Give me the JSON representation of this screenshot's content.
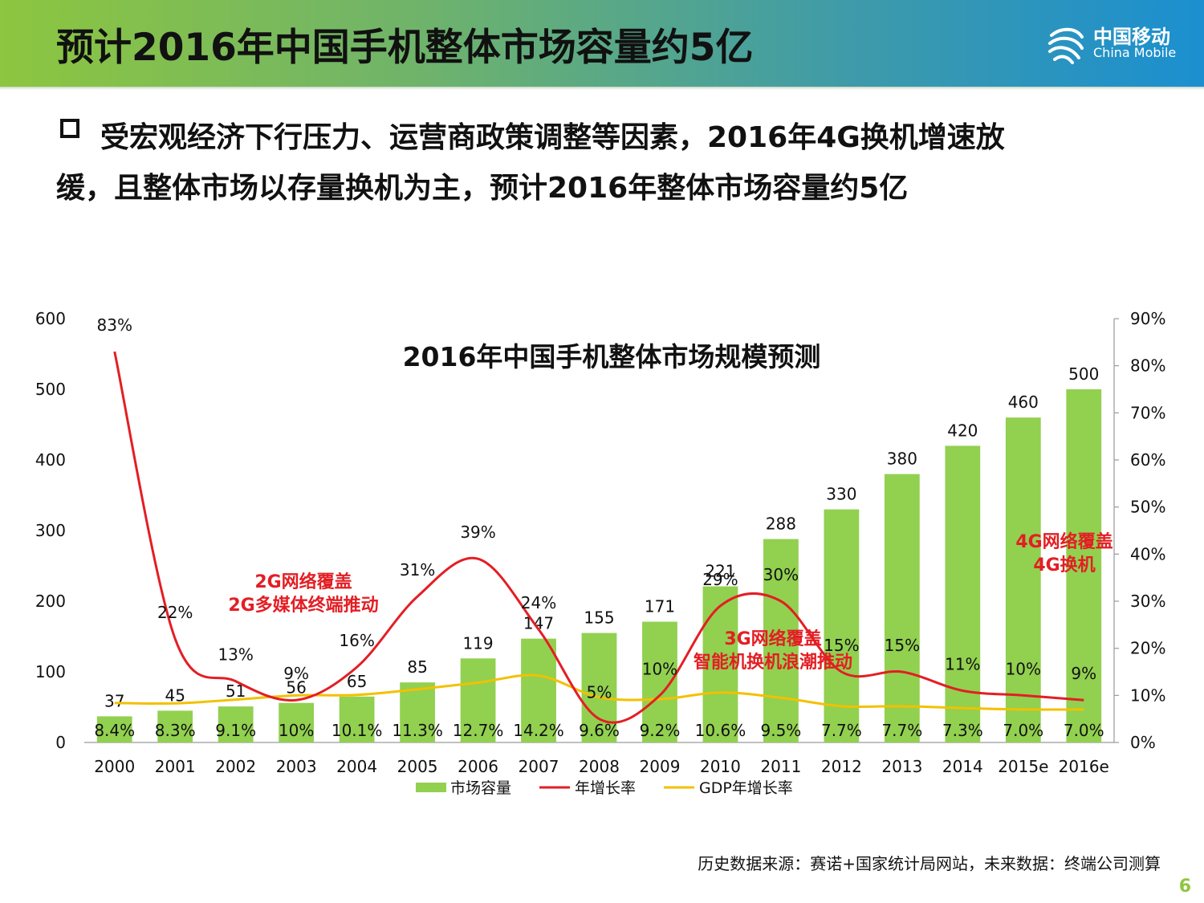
{
  "header": {
    "title": "预计2016年中国手机整体市场容量约5亿",
    "logo_cn": "中国移动",
    "logo_en": "China Mobile",
    "logo_icon": "china-mobile-logo-icon"
  },
  "bullet": {
    "line1": "受宏观经济下行压力、运营商政策调整等因素，2016年4G换机增速放",
    "line2": "缓，且整体市场以存量换机为主，预计2016年整体市场容量约5亿"
  },
  "chart_data": {
    "type": "bar",
    "title": "2016年中国手机整体市场规模预测",
    "categories": [
      "2000",
      "2001",
      "2002",
      "2003",
      "2004",
      "2005",
      "2006",
      "2007",
      "2008",
      "2009",
      "2010",
      "2011",
      "2012",
      "2013",
      "2014",
      "2015e",
      "2016e"
    ],
    "left_axis": {
      "ylim": [
        0,
        600
      ],
      "ticks": [
        "0",
        "100",
        "200",
        "300",
        "400",
        "500",
        "600"
      ]
    },
    "right_axis": {
      "ylim": [
        0,
        90
      ],
      "ticks": [
        "0%",
        "10%",
        "20%",
        "30%",
        "40%",
        "50%",
        "60%",
        "70%",
        "80%",
        "90%"
      ]
    },
    "series": [
      {
        "name": "市场容量",
        "type": "bar",
        "axis": "left",
        "color": "#92d050",
        "values": [
          37,
          45,
          51,
          56,
          65,
          85,
          119,
          147,
          155,
          171,
          221,
          288,
          330,
          380,
          420,
          460,
          500
        ],
        "labels": [
          "37",
          "45",
          "51",
          "56",
          "65",
          "85",
          "119",
          "147",
          "155",
          "171",
          "221",
          "288",
          "330",
          "380",
          "420",
          "460",
          "500"
        ]
      },
      {
        "name": "年增长率",
        "type": "line",
        "axis": "right",
        "color": "#e31e24",
        "values": [
          83,
          22,
          13,
          9,
          16,
          31,
          39,
          24,
          5,
          10,
          29,
          30,
          15,
          15,
          11,
          10,
          9
        ],
        "labels": [
          "83%",
          "22%",
          "13%",
          "9%",
          "16%",
          "31%",
          "39%",
          "24%",
          "5%",
          "10%",
          "29%",
          "30%",
          "15%",
          "15%",
          "11%",
          "10%",
          "9%"
        ]
      },
      {
        "name": "GDP年增长率",
        "type": "line",
        "axis": "right",
        "color": "#f2c100",
        "values": [
          8.4,
          8.3,
          9.1,
          10,
          10.1,
          11.3,
          12.7,
          14.2,
          9.6,
          9.2,
          10.6,
          9.5,
          7.7,
          7.7,
          7.3,
          7.0,
          7.0
        ],
        "labels": [
          "8.4%",
          "8.3%",
          "9.1%",
          "10%",
          "10.1%",
          "11.3%",
          "12.7%",
          "14.2%",
          "9.6%",
          "9.2%",
          "10.6%",
          "9.5%",
          "7.7%",
          "7.7%",
          "7.3%",
          "7.0%",
          "7.0%"
        ]
      }
    ],
    "annotations": [
      {
        "lines": [
          "2G网络覆盖",
          "2G多媒体终端推动"
        ],
        "color": "#e31e24"
      },
      {
        "lines": [
          "3G网络覆盖",
          "智能机换机浪潮推动"
        ],
        "color": "#e31e24"
      },
      {
        "lines": [
          "4G网络覆盖",
          "4G换机"
        ],
        "color": "#e31e24"
      }
    ],
    "legend": {
      "position": "bottom"
    }
  },
  "source": "历史数据来源：赛诺+国家统计局网站，未来数据：终端公司测算",
  "page_number": "6"
}
